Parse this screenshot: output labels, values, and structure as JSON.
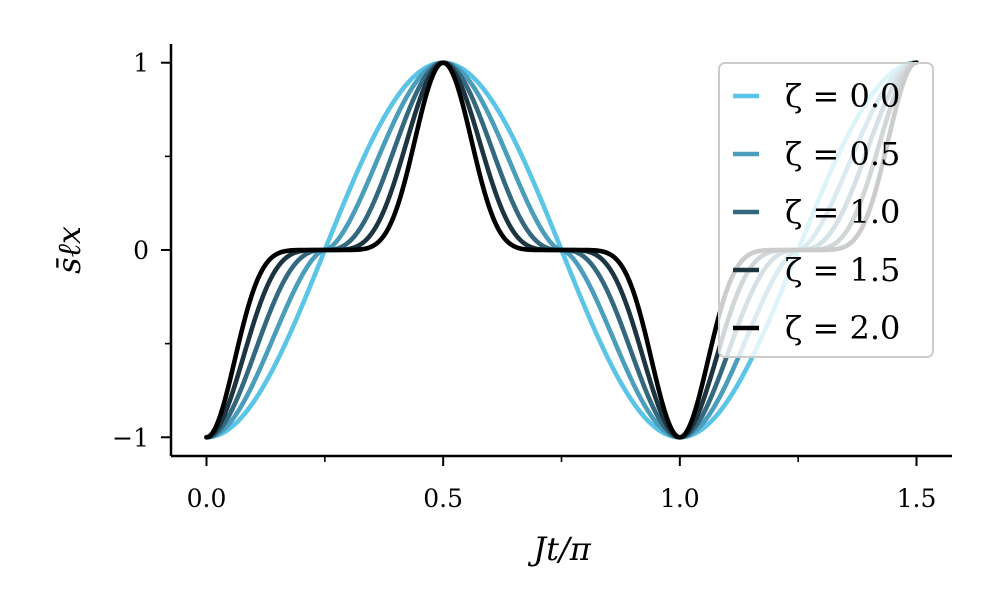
{
  "chart_data": {
    "type": "line",
    "xlabel": "Jt/π",
    "ylabel": "s̄ℓx",
    "xlim": [
      -0.075,
      1.575
    ],
    "ylim": [
      -1.1,
      1.1
    ],
    "x_ticks": [
      0.0,
      0.5,
      1.0,
      1.5
    ],
    "x_tick_labels": [
      "0.0",
      "0.5",
      "1.0",
      "1.5"
    ],
    "x_minor_ticks": [
      0.25,
      0.75,
      1.25
    ],
    "y_ticks": [
      -1,
      0,
      1
    ],
    "y_tick_labels": [
      "−1",
      "0",
      "1"
    ],
    "y_minor_ticks": [
      -0.5,
      0.5
    ],
    "x_range": [
      0,
      1.5
    ],
    "function": "-sign(cos(2πx))·|cos(2πx)|^(e^ζ)",
    "legend_position": "upper right",
    "grid": false,
    "series": [
      {
        "name": "ζ = 0.0",
        "zeta": 0.0,
        "color": "#5bc5e8"
      },
      {
        "name": "ζ = 0.5",
        "zeta": 0.5,
        "color": "#4a9dbb"
      },
      {
        "name": "ζ = 1.0",
        "zeta": 1.0,
        "color": "#33687f"
      },
      {
        "name": "ζ = 1.5",
        "zeta": 1.5,
        "color": "#1c3541"
      },
      {
        "name": "ζ = 2.0",
        "zeta": 2.0,
        "color": "#000000"
      }
    ]
  }
}
